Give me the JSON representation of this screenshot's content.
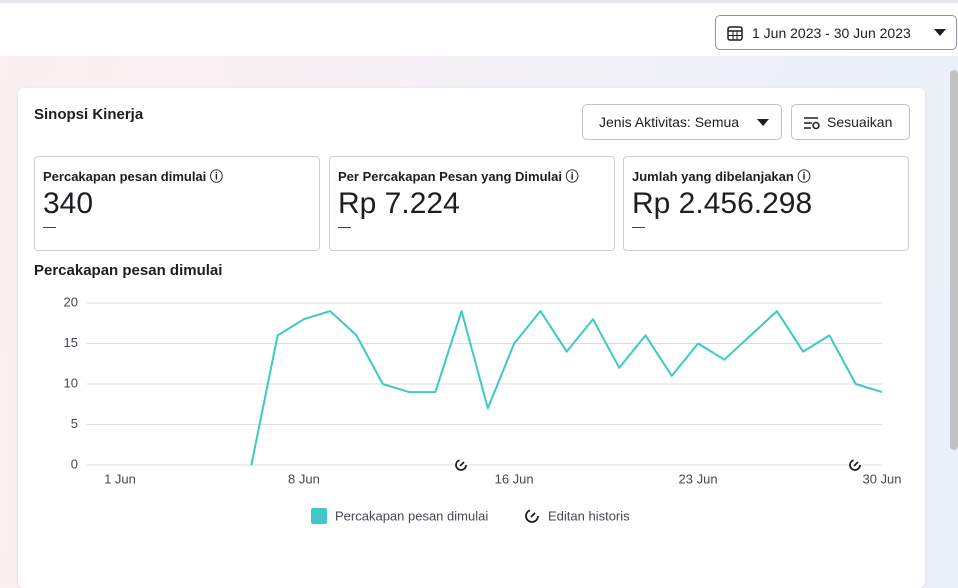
{
  "header": {
    "date_range": "1 Jun 2023 - 30 Jun 2023"
  },
  "panel": {
    "title": "Sinopsi Kinerja",
    "filter": "Jenis Aktivitas: Semua",
    "customize": "Sesuaikan",
    "metrics": [
      {
        "label": "Percakapan pesan dimulai",
        "value": "340",
        "change": "—"
      },
      {
        "label": "Per Percakapan Pesan yang Dimulai",
        "value": "Rp 7.224",
        "change": "—"
      },
      {
        "label": "Jumlah yang dibelanjakan",
        "value": "Rp 2.456.298",
        "change": "—"
      }
    ]
  },
  "chart_data": {
    "type": "line",
    "title": "Percakapan pesan dimulai",
    "categories": [
      "1 Jun",
      null,
      null,
      null,
      null,
      null,
      null,
      "8 Jun",
      null,
      null,
      null,
      null,
      null,
      null,
      null,
      "16 Jun",
      null,
      null,
      null,
      null,
      null,
      null,
      "23 Jun",
      null,
      null,
      null,
      null,
      null,
      null,
      "30 Jun"
    ],
    "series": [
      {
        "name": "Percakapan pesan dimulai",
        "color": "#3ec9c6",
        "values": [
          null,
          null,
          null,
          null,
          null,
          0,
          16,
          18,
          19,
          16,
          10,
          9,
          9,
          19,
          7,
          15,
          19,
          14,
          18,
          12,
          16,
          11,
          15,
          13,
          16,
          19,
          14,
          16,
          10,
          9
        ]
      }
    ],
    "ylim": [
      0,
      20
    ],
    "yticks": [
      0,
      5,
      10,
      15,
      20
    ],
    "grid": true,
    "historical_edit_label": "Editan historis"
  }
}
